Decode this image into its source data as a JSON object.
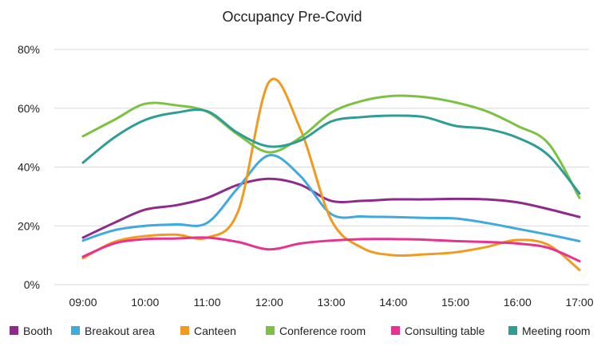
{
  "chart_data": {
    "type": "line",
    "title": "Occupancy Pre-Covid",
    "xlabel": "",
    "ylabel": "",
    "x": [
      "09:00",
      "09:30",
      "10:00",
      "10:30",
      "11:00",
      "11:30",
      "12:00",
      "12:30",
      "13:00",
      "13:30",
      "14:00",
      "14:30",
      "15:00",
      "15:30",
      "16:00",
      "16:30",
      "17:00"
    ],
    "x_tick_labels": [
      "09:00",
      "10:00",
      "11:00",
      "12:00",
      "13:00",
      "14:00",
      "15:00",
      "16:00",
      "17:00"
    ],
    "ylim": [
      0,
      80
    ],
    "y_ticks": [
      0,
      20,
      40,
      60,
      80
    ],
    "y_tick_labels": [
      "0%",
      "20%",
      "40%",
      "60%",
      "80%"
    ],
    "grid": "horizontal",
    "legend_position": "bottom",
    "series": [
      {
        "name": "Booth",
        "color": "#8e2a8c",
        "values": [
          16,
          21,
          25.5,
          27,
          29.5,
          34,
          36,
          34,
          28.5,
          28.5,
          29,
          29,
          29.2,
          29,
          28,
          25.7,
          23
        ]
      },
      {
        "name": "Breakout area",
        "color": "#3fa9e0",
        "values": [
          15,
          18.5,
          20,
          20.5,
          21,
          33,
          44,
          37,
          24,
          23.2,
          23,
          22.7,
          22.5,
          21,
          19,
          17,
          14.8
        ]
      },
      {
        "name": "Canteen",
        "color": "#f29a1f",
        "values": [
          9,
          14.5,
          16.5,
          17,
          16,
          25,
          69,
          53,
          22,
          12.5,
          10,
          10.3,
          11,
          12.8,
          15.2,
          13.5,
          5
        ]
      },
      {
        "name": "Conference room",
        "color": "#7cc242",
        "values": [
          50.5,
          56,
          61.5,
          61,
          58.8,
          51,
          45,
          50,
          58.5,
          62.5,
          64.2,
          63.8,
          62,
          59,
          54,
          48,
          29.5
        ]
      },
      {
        "name": "Consulting table",
        "color": "#e6338f",
        "values": [
          9.5,
          14,
          15.5,
          15.7,
          16,
          14.5,
          12,
          14,
          15,
          15.5,
          15.5,
          15.3,
          14.8,
          14.5,
          14,
          12.5,
          8
        ]
      },
      {
        "name": "Meeting room",
        "color": "#2e9e94",
        "values": [
          41.5,
          50,
          56,
          58.5,
          59,
          51.5,
          47,
          49,
          55.5,
          57,
          57.5,
          57,
          54,
          53,
          50,
          44,
          31
        ]
      }
    ]
  }
}
